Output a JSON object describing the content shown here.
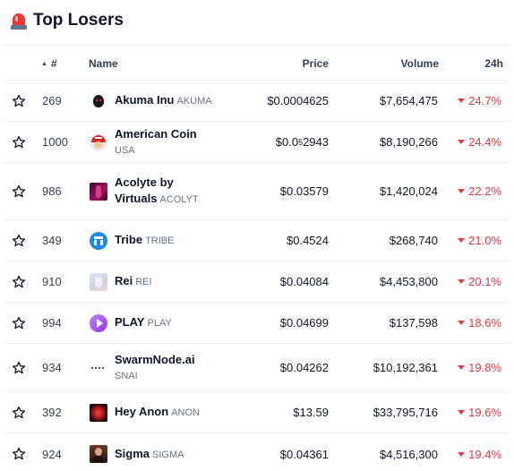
{
  "header": {
    "title": "Top Losers",
    "icon": "siren-icon"
  },
  "table": {
    "columns": {
      "rank": "#",
      "name": "Name",
      "price": "Price",
      "volume": "Volume",
      "change": "24h"
    },
    "rows": [
      {
        "rank": "269",
        "name": "Akuma Inu",
        "symbol": "AKUMA",
        "price": "$0.0004625",
        "volume": "$7,654,475",
        "change": "24.7%"
      },
      {
        "rank": "1000",
        "name": "American Coin",
        "symbol": "USA",
        "price_prefix": "$0.0",
        "price_sub": "5",
        "price_suffix": "2943",
        "volume": "$8,190,266",
        "change": "24.4%"
      },
      {
        "rank": "986",
        "name": "Acolyte by",
        "name2": "Virtuals",
        "symbol": "ACOLYT",
        "price": "$0.03579",
        "volume": "$1,420,024",
        "change": "22.2%"
      },
      {
        "rank": "349",
        "name": "Tribe",
        "symbol": "TRIBE",
        "price": "$0.4524",
        "volume": "$268,740",
        "change": "21.0%"
      },
      {
        "rank": "910",
        "name": "Rei",
        "symbol": "REI",
        "price": "$0.04084",
        "volume": "$4,453,800",
        "change": "20.1%"
      },
      {
        "rank": "994",
        "name": "PLAY",
        "symbol": "PLAY",
        "price": "$0.04699",
        "volume": "$137,598",
        "change": "18.6%"
      },
      {
        "rank": "934",
        "name": "SwarmNode.ai",
        "symbol": "SNAI",
        "price": "$0.04262",
        "volume": "$10,192,361",
        "change": "19.8%"
      },
      {
        "rank": "392",
        "name": "Hey Anon",
        "symbol": "ANON",
        "price": "$13.59",
        "volume": "$33,795,716",
        "change": "19.6%"
      },
      {
        "rank": "924",
        "name": "Sigma",
        "symbol": "SIGMA",
        "price": "$0.04361",
        "volume": "$4,516,300",
        "change": "19.4%"
      }
    ]
  },
  "colors": {
    "negative": "#ea3943",
    "text": "#0f172a",
    "muted": "#64748b",
    "divider": "#eff2f5"
  }
}
